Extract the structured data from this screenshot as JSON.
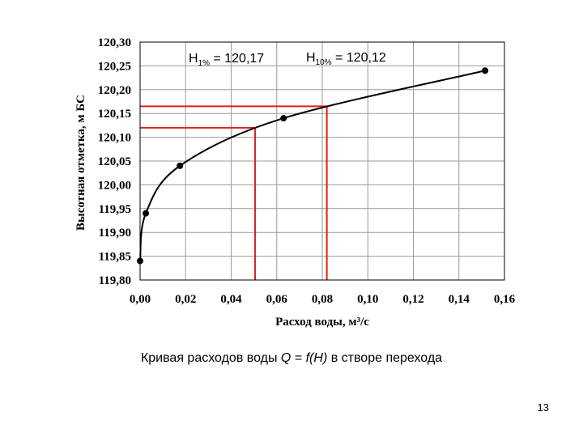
{
  "caption": {
    "prefix": "Кривая расходов воды ",
    "formula_q": "Q",
    "formula_eq": " = ",
    "formula_f": "f(H)",
    "suffix": " в створе перехода"
  },
  "page_number": "13",
  "colors": {
    "curve": "#000000",
    "marker": "#000000",
    "reference_lines": "#e02020",
    "grid": "#9a9a9a",
    "frame": "#000000"
  },
  "chart_data": {
    "type": "line",
    "xlabel": "Расход воды, м³/с",
    "ylabel": "Высотная отметка, м БС",
    "xlim": [
      0,
      0.16
    ],
    "ylim": [
      119.8,
      120.3
    ],
    "x_ticks": [
      "0,00",
      "0,02",
      "0,04",
      "0,06",
      "0,08",
      "0,10",
      "0,12",
      "0,14",
      "0,16"
    ],
    "y_ticks": [
      "119,80",
      "119,85",
      "119,90",
      "119,95",
      "120,00",
      "120,05",
      "120,10",
      "120,15",
      "120,20",
      "120,25",
      "120,30"
    ],
    "grid": true,
    "series": [
      {
        "points": [
          {
            "x": 0.0,
            "y": 119.84
          },
          {
            "x": 0.0025,
            "y": 119.94
          },
          {
            "x": 0.0175,
            "y": 120.04
          },
          {
            "x": 0.063,
            "y": 120.14
          },
          {
            "x": 0.1515,
            "y": 120.24
          }
        ]
      }
    ],
    "reference_levels": [
      {
        "label_main": "H",
        "label_sub": "1%",
        "label_value": " = 120,17",
        "y": 120.165,
        "x": 0.082
      },
      {
        "label_main": "H",
        "label_sub": "10%",
        "label_value": " = 120,12",
        "y": 120.12,
        "x": 0.0505
      }
    ]
  }
}
